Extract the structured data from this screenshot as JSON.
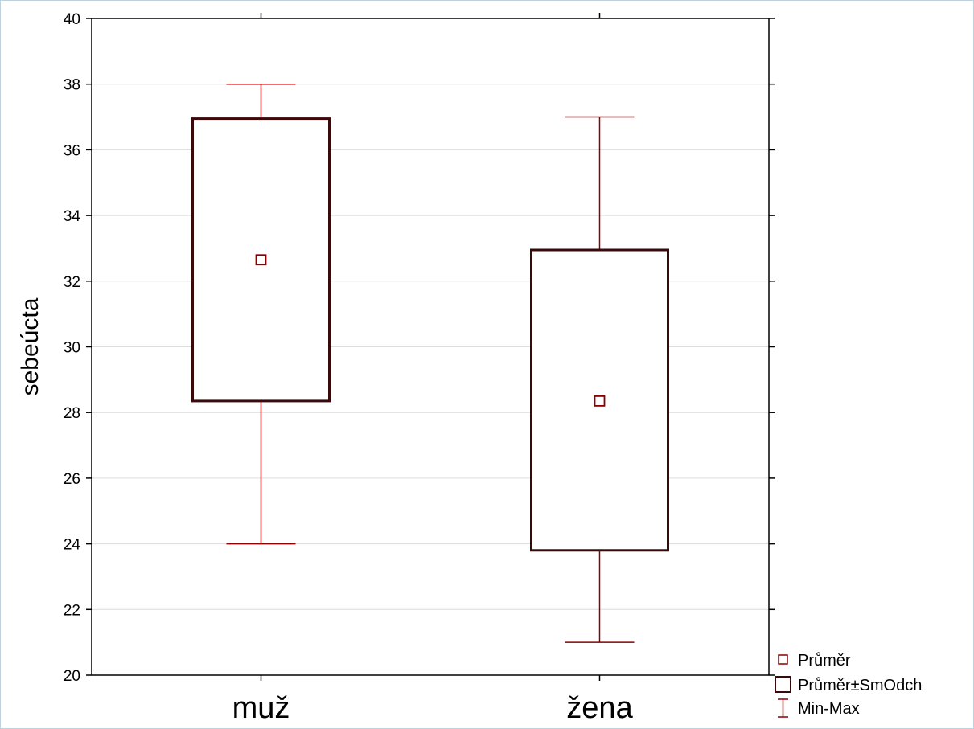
{
  "chart_data": {
    "type": "box",
    "ylabel": "sebeúcta",
    "ylim": [
      20,
      40
    ],
    "yticks": [
      "20",
      "22",
      "24",
      "26",
      "28",
      "30",
      "32",
      "34",
      "36",
      "38",
      "40"
    ],
    "grid": true,
    "categories": [
      "muž",
      "žena"
    ],
    "groups": [
      {
        "category": "muž",
        "mean": 32.65,
        "mean_minus_sd": 28.35,
        "mean_plus_sd": 36.95,
        "min": 24,
        "max": 38
      },
      {
        "category": "žena",
        "mean": 28.35,
        "mean_minus_sd": 23.8,
        "mean_plus_sd": 32.95,
        "min": 21,
        "max": 37
      }
    ],
    "legend": {
      "position": "bottom-right",
      "items": [
        {
          "symbol": "mean-marker",
          "label": "Průměr"
        },
        {
          "symbol": "box",
          "label": "Průměr±SmOdch"
        },
        {
          "symbol": "whisker",
          "label": "Min-Max"
        }
      ]
    },
    "colors": {
      "series": "#8b0000",
      "box_stroke": "#3a0a0a",
      "grid": "#dcdcdc",
      "axis": "#000000"
    }
  }
}
